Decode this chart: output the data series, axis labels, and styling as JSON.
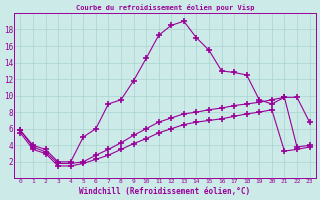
{
  "title": "Courbe du refroidissement éolien pour Visp",
  "xlabel": "Windchill (Refroidissement éolien,°C)",
  "background_color": "#cceae7",
  "line_color": "#990099",
  "grid_color": "#aad4d0",
  "x_ticks": [
    0,
    1,
    2,
    3,
    4,
    5,
    6,
    7,
    8,
    9,
    10,
    11,
    12,
    13,
    14,
    15,
    16,
    17,
    18,
    19,
    20,
    21,
    22,
    23
  ],
  "y_ticks": [
    2,
    4,
    6,
    8,
    10,
    12,
    14,
    16,
    18
  ],
  "xlim": [
    -0.5,
    23.5
  ],
  "ylim": [
    0,
    20
  ],
  "line1_x": [
    0,
    1,
    2,
    3,
    4,
    5,
    6,
    7,
    8,
    9,
    10,
    11,
    12,
    13,
    14,
    15,
    16,
    17,
    18,
    19,
    20,
    21,
    22,
    23
  ],
  "line1_y": [
    5.8,
    4.0,
    3.5,
    2.0,
    2.0,
    5.0,
    6.0,
    9.0,
    9.5,
    11.8,
    14.5,
    17.3,
    18.5,
    19.0,
    17.0,
    15.5,
    13.0,
    12.8,
    12.5,
    9.5,
    9.0,
    9.8,
    9.8,
    6.8
  ],
  "line2_x": [
    0,
    1,
    2,
    3,
    4,
    5,
    6,
    7,
    8,
    9,
    10,
    11,
    12,
    13,
    14,
    15,
    16,
    17,
    18,
    19,
    20,
    21,
    22,
    23
  ],
  "line2_y": [
    5.8,
    3.8,
    3.2,
    1.8,
    1.8,
    2.0,
    2.8,
    3.5,
    4.3,
    5.2,
    6.0,
    6.8,
    7.3,
    7.8,
    8.0,
    8.3,
    8.5,
    8.8,
    9.0,
    9.2,
    9.5,
    9.8,
    3.8,
    4.0
  ],
  "line3_x": [
    0,
    1,
    2,
    3,
    4,
    5,
    6,
    7,
    8,
    9,
    10,
    11,
    12,
    13,
    14,
    15,
    16,
    17,
    18,
    19,
    20,
    21,
    22,
    23
  ],
  "line3_y": [
    5.5,
    3.5,
    3.0,
    1.5,
    1.5,
    1.8,
    2.3,
    2.8,
    3.5,
    4.2,
    4.8,
    5.5,
    6.0,
    6.5,
    6.8,
    7.0,
    7.2,
    7.5,
    7.8,
    8.0,
    8.3,
    3.3,
    3.5,
    3.8
  ]
}
